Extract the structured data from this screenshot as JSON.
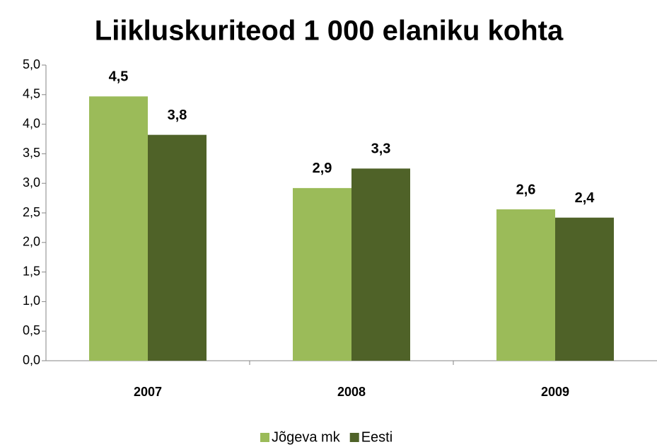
{
  "chart_data": {
    "type": "bar",
    "title": "Liikluskuriteod 1 000 elaniku kohta",
    "categories": [
      "2007",
      "2008",
      "2009"
    ],
    "series": [
      {
        "name": "Jõgeva mk",
        "color": "#9bbb59",
        "values": [
          4.47,
          2.92,
          2.56
        ],
        "value_labels": [
          "4,5",
          "2,9",
          "2,6"
        ]
      },
      {
        "name": "Eesti",
        "color": "#4f6228",
        "values": [
          3.82,
          3.25,
          2.42
        ],
        "value_labels": [
          "3,8",
          "3,3",
          "2,4"
        ]
      }
    ],
    "ylim": [
      0,
      5
    ],
    "yticks": [
      {
        "value": 0,
        "label": "0,0"
      },
      {
        "value": 0.5,
        "label": "0,5"
      },
      {
        "value": 1,
        "label": "1,0"
      },
      {
        "value": 1.5,
        "label": "1,5"
      },
      {
        "value": 2,
        "label": "2,0"
      },
      {
        "value": 2.5,
        "label": "2,5"
      },
      {
        "value": 3,
        "label": "3,0"
      },
      {
        "value": 3.5,
        "label": "3,5"
      },
      {
        "value": 4,
        "label": "4,0"
      },
      {
        "value": 4.5,
        "label": "4,5"
      },
      {
        "value": 5,
        "label": "5,0"
      }
    ],
    "grid": false,
    "legend": "bottom"
  }
}
